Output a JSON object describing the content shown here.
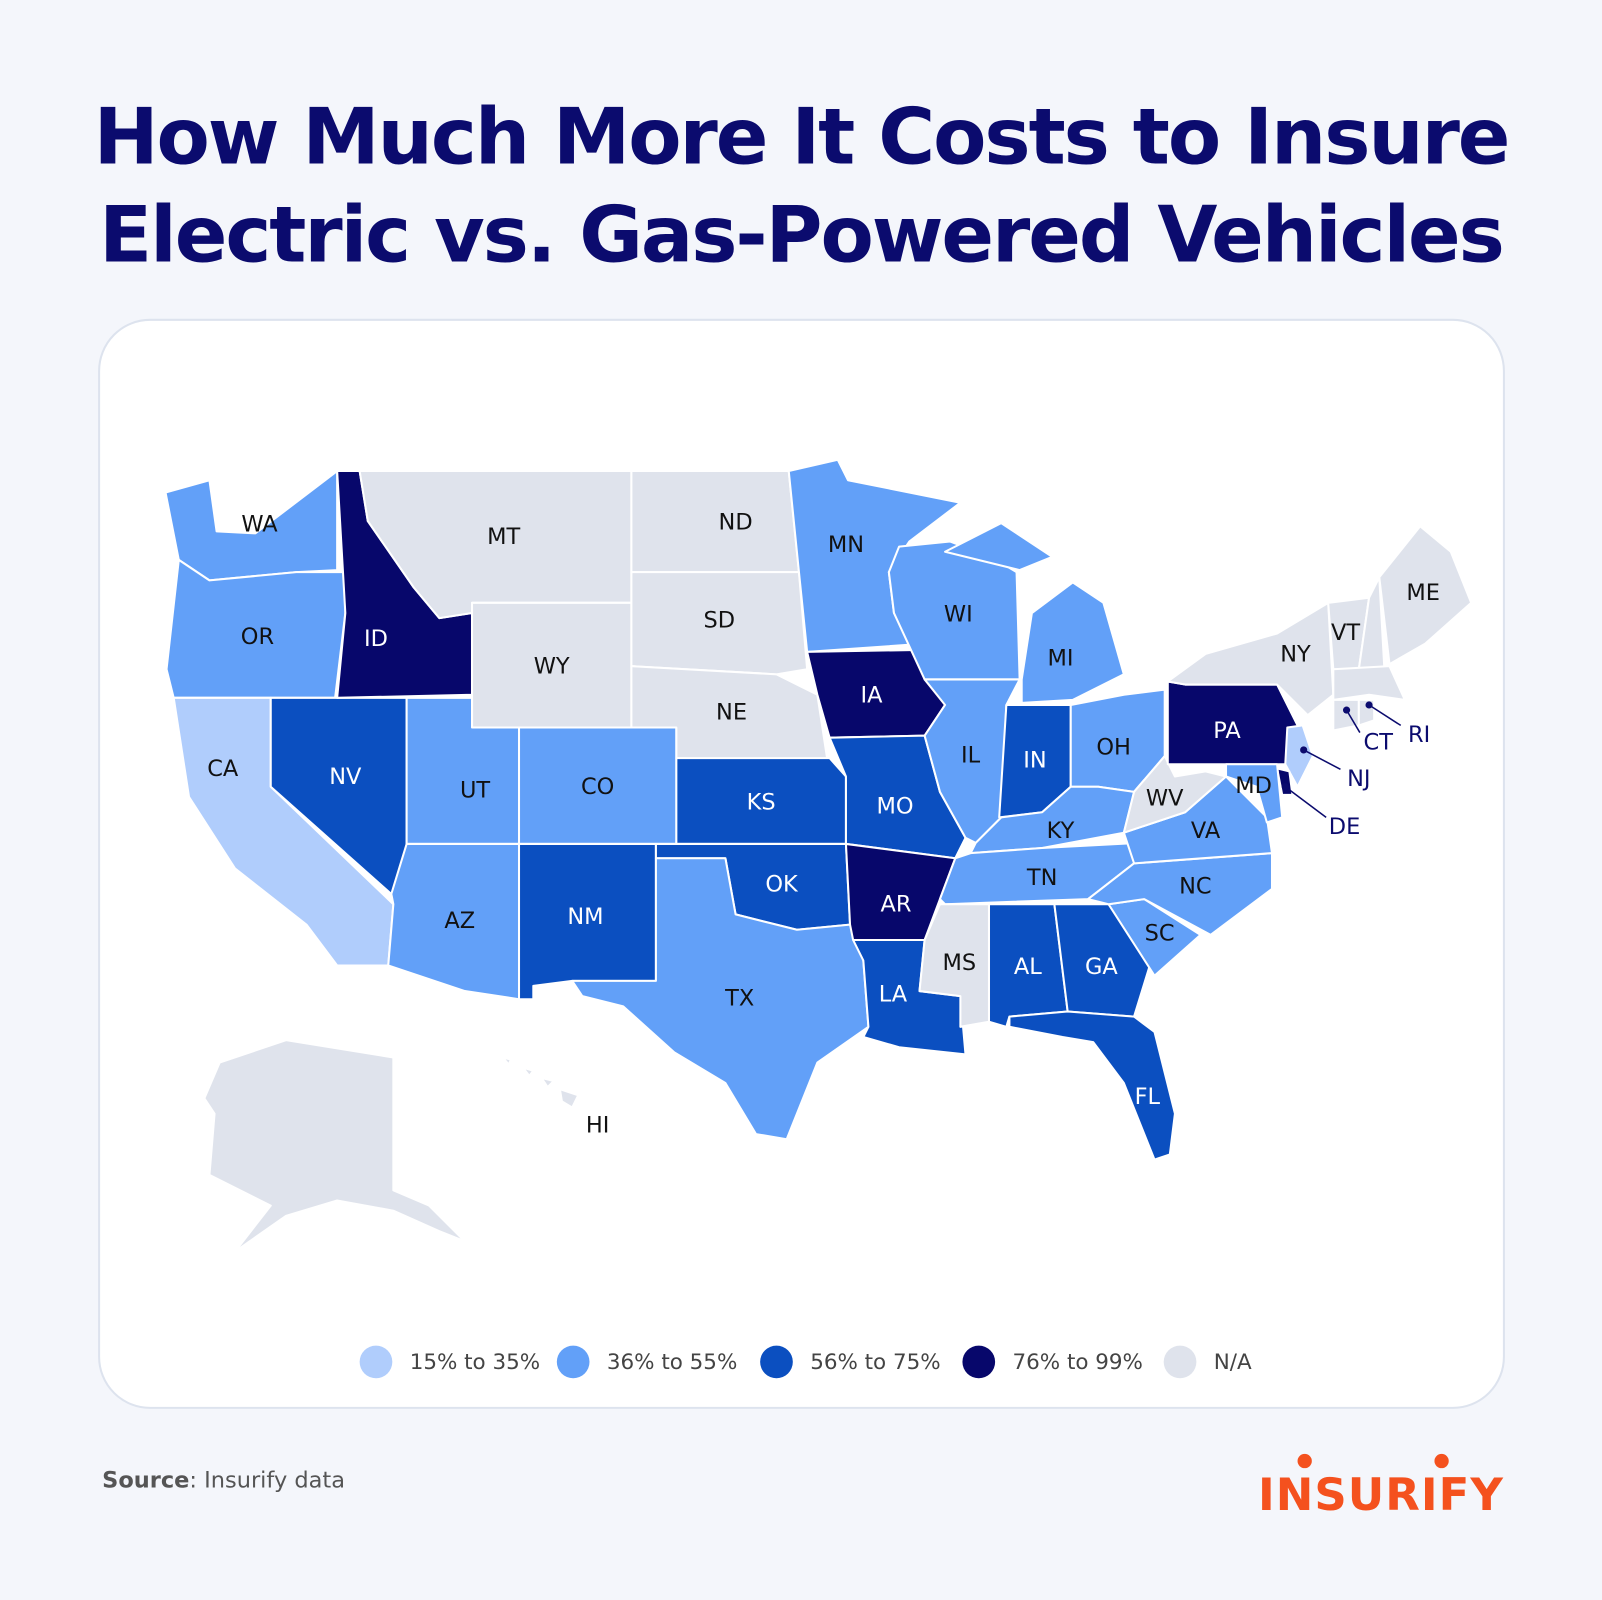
{
  "title_lines": [
    "How Much More It Costs to Insure",
    "Electric vs. Gas-Powered Vehicles"
  ],
  "legend": [
    {
      "label": "15% to 35%",
      "color": "#b0cdfc"
    },
    {
      "label": "36% to 55%",
      "color": "#62a0f8"
    },
    {
      "label": "56% to 75%",
      "color": "#0b4fc0"
    },
    {
      "label": "76% to 99%",
      "color": "#07076b"
    },
    {
      "label": "N/A",
      "color": "#dfe3ec"
    }
  ],
  "states": [
    {
      "label": "WA",
      "range": "36% to 55%"
    },
    {
      "label": "OR",
      "range": "36% to 55%"
    },
    {
      "label": "CA",
      "range": "15% to 35%"
    },
    {
      "label": "NV",
      "range": "56% to 75%"
    },
    {
      "label": "ID",
      "range": "76% to 99%"
    },
    {
      "label": "MT",
      "range": "N/A"
    },
    {
      "label": "WY",
      "range": "N/A"
    },
    {
      "label": "UT",
      "range": "36% to 55%"
    },
    {
      "label": "AZ",
      "range": "36% to 55%"
    },
    {
      "label": "CO",
      "range": "36% to 55%"
    },
    {
      "label": "NM",
      "range": "56% to 75%"
    },
    {
      "label": "ND",
      "range": "N/A"
    },
    {
      "label": "SD",
      "range": "N/A"
    },
    {
      "label": "NE",
      "range": "N/A"
    },
    {
      "label": "KS",
      "range": "56% to 75%"
    },
    {
      "label": "OK",
      "range": "56% to 75%"
    },
    {
      "label": "TX",
      "range": "36% to 55%"
    },
    {
      "label": "MN",
      "range": "36% to 55%"
    },
    {
      "label": "IA",
      "range": "76% to 99%"
    },
    {
      "label": "MO",
      "range": "56% to 75%"
    },
    {
      "label": "AR",
      "range": "76% to 99%"
    },
    {
      "label": "LA",
      "range": "56% to 75%"
    },
    {
      "label": "WI",
      "range": "36% to 55%"
    },
    {
      "label": "IL",
      "range": "36% to 55%"
    },
    {
      "label": "MI",
      "range": "36% to 55%"
    },
    {
      "label": "IN",
      "range": "56% to 75%"
    },
    {
      "label": "OH",
      "range": "36% to 55%"
    },
    {
      "label": "KY",
      "range": "36% to 55%"
    },
    {
      "label": "TN",
      "range": "36% to 55%"
    },
    {
      "label": "MS",
      "range": "N/A"
    },
    {
      "label": "AL",
      "range": "56% to 75%"
    },
    {
      "label": "GA",
      "range": "56% to 75%"
    },
    {
      "label": "FL",
      "range": "56% to 75%"
    },
    {
      "label": "SC",
      "range": "36% to 55%"
    },
    {
      "label": "NC",
      "range": "36% to 55%"
    },
    {
      "label": "VA",
      "range": "36% to 55%"
    },
    {
      "label": "WV",
      "range": "N/A"
    },
    {
      "label": "PA",
      "range": "76% to 99%"
    },
    {
      "label": "NY",
      "range": "N/A"
    },
    {
      "label": "VT",
      "range": "N/A"
    },
    {
      "label": null,
      "range": "N/A"
    },
    {
      "label": "ME",
      "range": "N/A"
    },
    {
      "label": null,
      "range": "N/A"
    },
    {
      "label": "CT",
      "range": "N/A"
    },
    {
      "label": "RI",
      "range": "N/A"
    },
    {
      "label": "NJ",
      "range": "15% to 35%"
    },
    {
      "label": "DE",
      "range": "76% to 99%"
    },
    {
      "label": "MD",
      "range": "36% to 55%"
    },
    {
      "label": null,
      "range": "N/A"
    },
    {
      "label": "HI",
      "range": "N/A"
    }
  ],
  "source": {
    "bold": "Source",
    "text": ": Insurify data"
  },
  "logo": "INSURIFY"
}
